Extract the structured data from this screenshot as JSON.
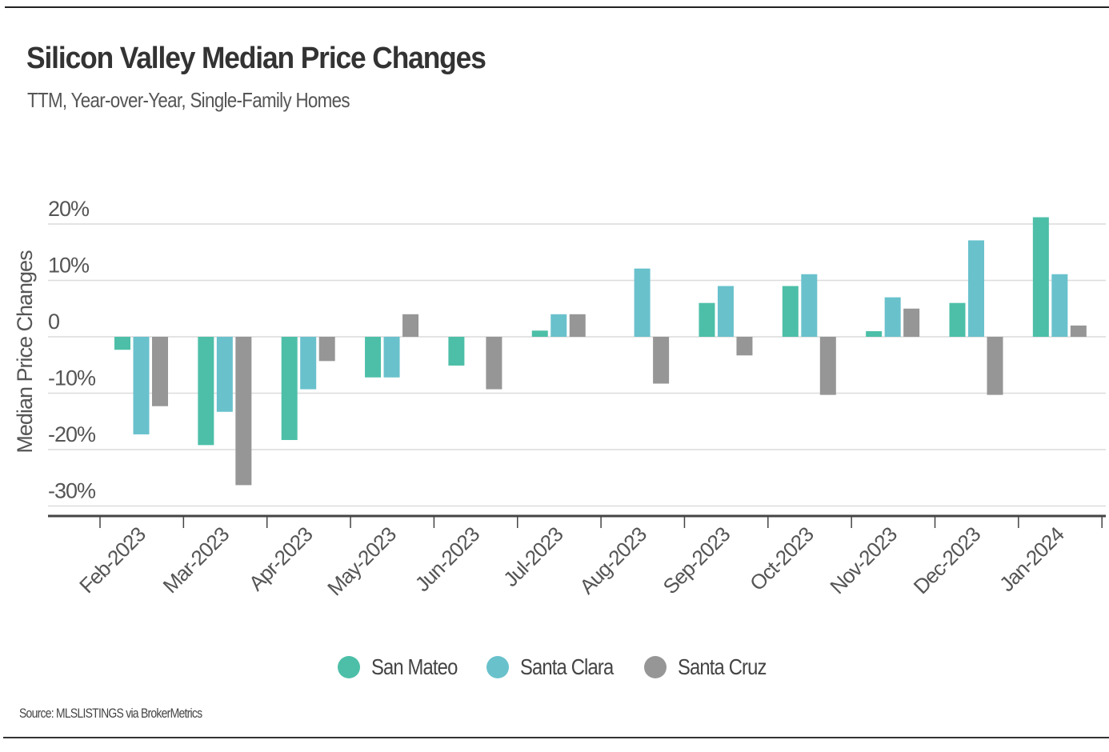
{
  "header": {
    "title": "Silicon Valley Median Price Changes",
    "subtitle": "TTM, Year-over-Year, Single-Family Homes"
  },
  "footer": {
    "source": "Source:  MLSLISTINGS via BrokerMetrics"
  },
  "chart_data": {
    "type": "bar",
    "title": "Silicon Valley Median Price Changes",
    "subtitle": "TTM, Year-over-Year, Single-Family Homes",
    "xlabel": "",
    "ylabel": "Median Price Changes",
    "ylim": [
      -30,
      20
    ],
    "yticks": [
      20,
      10,
      0,
      -10,
      -20,
      -30
    ],
    "ytick_labels": [
      "20%",
      "10%",
      "0",
      "-10%",
      "-20%",
      "-30%"
    ],
    "grid": true,
    "legend_position": "bottom-center",
    "categories": [
      "Feb-2023",
      "Mar-2023",
      "Apr-2023",
      "May-2023",
      "Jun-2023",
      "Jul-2023",
      "Aug-2023",
      "Sep-2023",
      "Oct-2023",
      "Nov-2023",
      "Dec-2023",
      "Jan-2024"
    ],
    "series": [
      {
        "name": "San Mateo",
        "color": "#4dbfa8",
        "values": [
          -2.3,
          -19.2,
          -18.3,
          -7.2,
          -5.1,
          1.1,
          0,
          6.0,
          9.0,
          1.0,
          6.0,
          21.2
        ]
      },
      {
        "name": "Santa Clara",
        "color": "#69c1cc",
        "values": [
          -17.3,
          -13.3,
          -9.3,
          -7.2,
          0,
          4.0,
          12.1,
          9.0,
          11.1,
          7.0,
          17.1,
          11.1
        ]
      },
      {
        "name": "Santa Cruz",
        "color": "#969696",
        "values": [
          -12.3,
          -26.3,
          -4.3,
          4.0,
          -9.3,
          4.0,
          -8.3,
          -3.3,
          -10.3,
          5.0,
          -10.3,
          2.0
        ]
      }
    ]
  }
}
